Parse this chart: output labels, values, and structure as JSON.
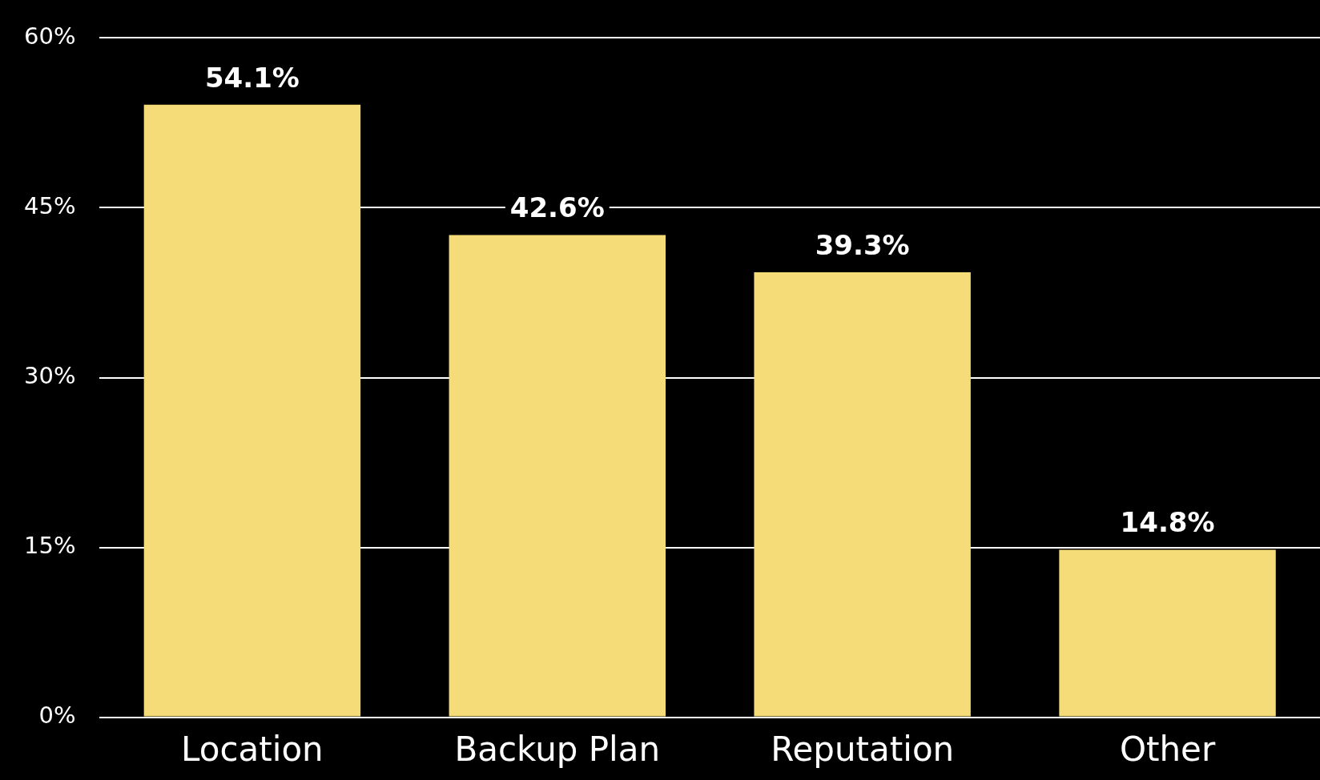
{
  "chart_data": {
    "type": "bar",
    "categories": [
      "Location",
      "Backup Plan",
      "Reputation",
      "Other"
    ],
    "values": [
      54.1,
      42.6,
      39.3,
      14.8
    ],
    "value_labels": [
      "54.1%",
      "42.6%",
      "39.3%",
      "14.8%"
    ],
    "color": "#f5dc78",
    "ylim": [
      0,
      60
    ],
    "yticks": [
      {
        "value": 0,
        "label": "0%"
      },
      {
        "value": 15,
        "label": "15%"
      },
      {
        "value": 30,
        "label": "30%"
      },
      {
        "value": 45,
        "label": "45%"
      },
      {
        "value": 60,
        "label": "60%"
      }
    ],
    "grid": "y",
    "legend": false
  }
}
